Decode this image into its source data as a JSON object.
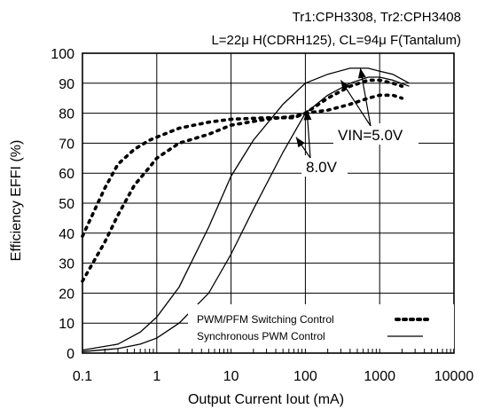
{
  "chart_data": {
    "type": "line",
    "annotations": {
      "line1": "Tr1:CPH3308, Tr2:CPH3408",
      "line2": "L=22μ H(CDRH125), CL=94μ F(Tantalum)",
      "vin_label": "VIN=5.0V",
      "vin_label_2": "8.0V"
    },
    "xlabel": "Output Current Iout (mA)",
    "ylabel": "Efficiency EFFI (%)",
    "xscale": "log",
    "xlim": [
      0.1,
      10000
    ],
    "ylim": [
      0,
      100
    ],
    "x_ticks": [
      "0.1",
      "1",
      "10",
      "100",
      "1000",
      "10000"
    ],
    "y_ticks": [
      "0",
      "10",
      "20",
      "30",
      "40",
      "50",
      "60",
      "70",
      "80",
      "90",
      "100"
    ],
    "grid": true,
    "legend": {
      "position": "bottom-right",
      "entries": [
        {
          "label": "PWM/PFM Switching Control",
          "style": "dotted"
        },
        {
          "label": "Synchronous PWM Control",
          "style": "solid"
        }
      ]
    },
    "series": [
      {
        "name": "PWM/PFM Switching Control",
        "vin": "5.0V",
        "style": "dotted",
        "points": [
          [
            0.1,
            39
          ],
          [
            0.2,
            55
          ],
          [
            0.3,
            63
          ],
          [
            0.5,
            68
          ],
          [
            0.8,
            71
          ],
          [
            1,
            72
          ],
          [
            2,
            75
          ],
          [
            5,
            77
          ],
          [
            10,
            78
          ],
          [
            30,
            78.5
          ],
          [
            70,
            78.5
          ],
          [
            100,
            80
          ],
          [
            200,
            85
          ],
          [
            400,
            89
          ],
          [
            700,
            91
          ],
          [
            1000,
            91
          ],
          [
            1500,
            90
          ],
          [
            2000,
            89
          ]
        ]
      },
      {
        "name": "PWM/PFM Switching Control",
        "vin": "8.0V",
        "style": "dotted",
        "points": [
          [
            0.1,
            24
          ],
          [
            0.2,
            37
          ],
          [
            0.3,
            46
          ],
          [
            0.5,
            56
          ],
          [
            0.8,
            62
          ],
          [
            1,
            65
          ],
          [
            2,
            70
          ],
          [
            5,
            73
          ],
          [
            10,
            76
          ],
          [
            30,
            78
          ],
          [
            70,
            79
          ],
          [
            100,
            80
          ],
          [
            200,
            81
          ],
          [
            400,
            83
          ],
          [
            700,
            85
          ],
          [
            1000,
            86
          ],
          [
            1500,
            86
          ],
          [
            2000,
            85
          ]
        ]
      },
      {
        "name": "Synchronous PWM Control",
        "vin": "5.0V",
        "style": "solid",
        "points": [
          [
            0.1,
            1
          ],
          [
            0.3,
            3
          ],
          [
            0.6,
            7
          ],
          [
            1,
            12
          ],
          [
            2,
            22
          ],
          [
            5,
            42
          ],
          [
            10,
            59
          ],
          [
            20,
            71
          ],
          [
            50,
            83
          ],
          [
            100,
            90
          ],
          [
            200,
            93
          ],
          [
            400,
            95
          ],
          [
            700,
            95
          ],
          [
            1000,
            94
          ],
          [
            1500,
            93
          ],
          [
            2500,
            90
          ]
        ]
      },
      {
        "name": "Synchronous PWM Control",
        "vin": "8.0V",
        "style": "solid",
        "points": [
          [
            0.1,
            0.5
          ],
          [
            0.3,
            1.5
          ],
          [
            0.6,
            3
          ],
          [
            1,
            5
          ],
          [
            2,
            10
          ],
          [
            5,
            20
          ],
          [
            10,
            33
          ],
          [
            20,
            48
          ],
          [
            50,
            67
          ],
          [
            100,
            80
          ],
          [
            200,
            86
          ],
          [
            400,
            90
          ],
          [
            700,
            92
          ],
          [
            1000,
            92
          ],
          [
            1500,
            91
          ],
          [
            2500,
            89
          ]
        ]
      }
    ]
  }
}
